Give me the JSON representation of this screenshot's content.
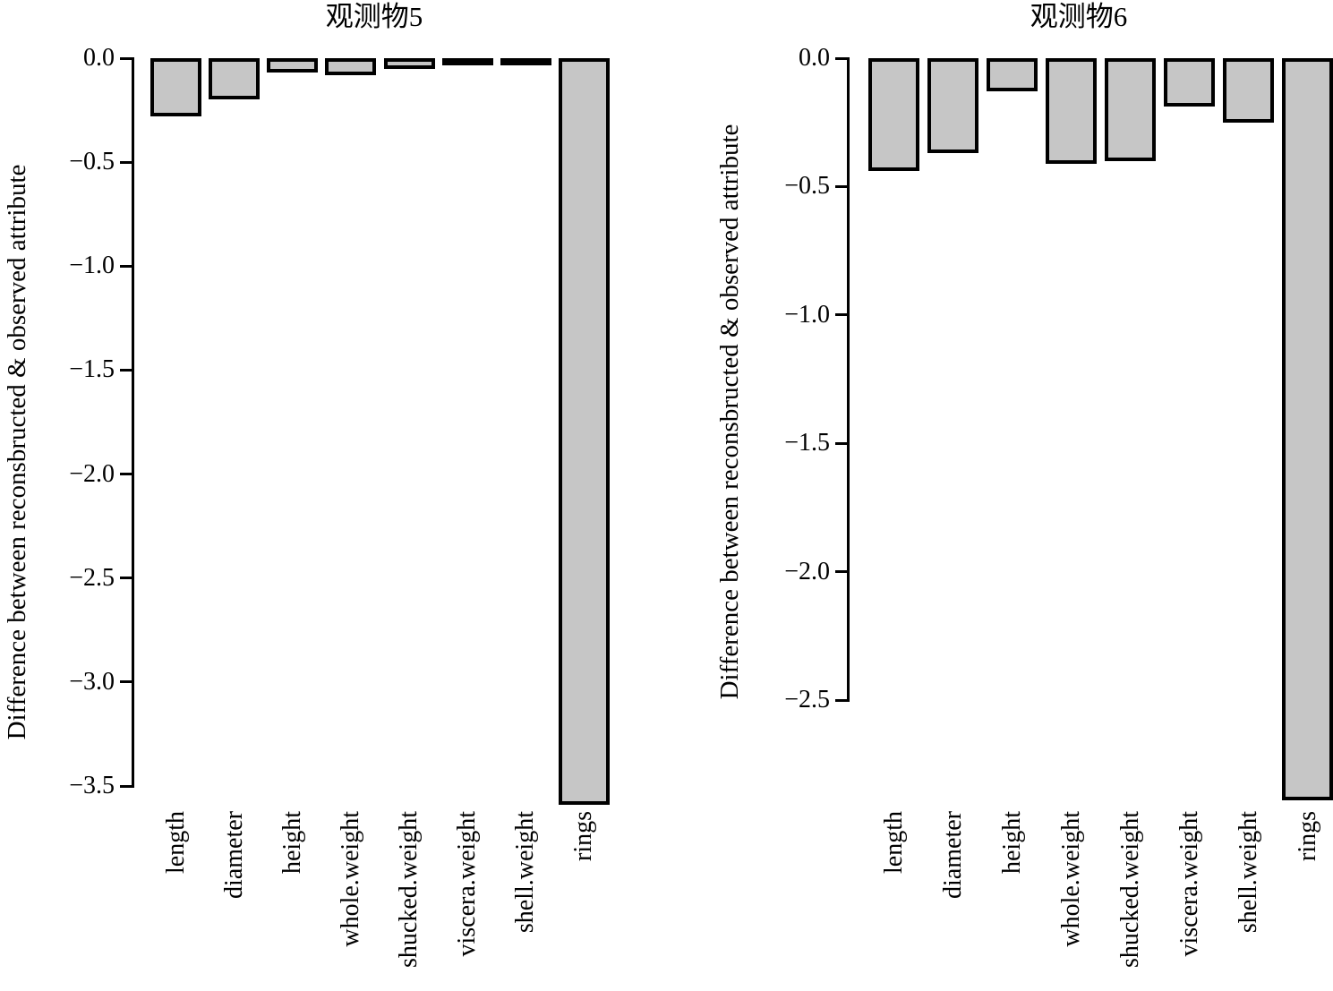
{
  "style": {
    "background": "#ffffff",
    "bar_fill": "#c6c6c6",
    "bar_border": "#000000",
    "text_color": "#000000"
  },
  "chart_data": [
    {
      "type": "bar",
      "title": "观测物5",
      "ylabel": "Difference between reconsbructed & observed attribute",
      "xlabel": "",
      "categories": [
        "length",
        "diameter",
        "height",
        "whole.weight",
        "shucked.weight",
        "viscera.weight",
        "shell.weight",
        "rings"
      ],
      "values": [
        -0.28,
        -0.2,
        -0.07,
        -0.08,
        -0.05,
        -0.015,
        -0.035,
        -3.59
      ],
      "ylim": [
        -3.5,
        0.0
      ],
      "yticks": [
        0.0,
        -0.5,
        -1.0,
        -1.5,
        -2.0,
        -2.5,
        -3.0,
        -3.5
      ],
      "ytick_labels": [
        "0.0",
        "−0.5",
        "−1.0",
        "−1.5",
        "−2.0",
        "−2.5",
        "−3.0",
        "−3.5"
      ],
      "grid": false,
      "legend": "none"
    },
    {
      "type": "bar",
      "title": "观测物6",
      "ylabel": "Difference between reconsbructed & observed attribute",
      "xlabel": "",
      "categories": [
        "length",
        "diameter",
        "height",
        "whole.weight",
        "shucked.weight",
        "viscera.weight",
        "shell.weight",
        "rings"
      ],
      "values": [
        -0.44,
        -0.37,
        -0.13,
        -0.41,
        -0.4,
        -0.19,
        -0.25,
        -2.89
      ],
      "ylim": [
        -2.5,
        0.0
      ],
      "yticks": [
        0.0,
        -0.5,
        -1.0,
        -1.5,
        -2.0,
        -2.5
      ],
      "ytick_labels": [
        "0.0",
        "−0.5",
        "−1.0",
        "−1.5",
        "−2.0",
        "−2.5"
      ],
      "grid": false,
      "legend": "none"
    }
  ]
}
